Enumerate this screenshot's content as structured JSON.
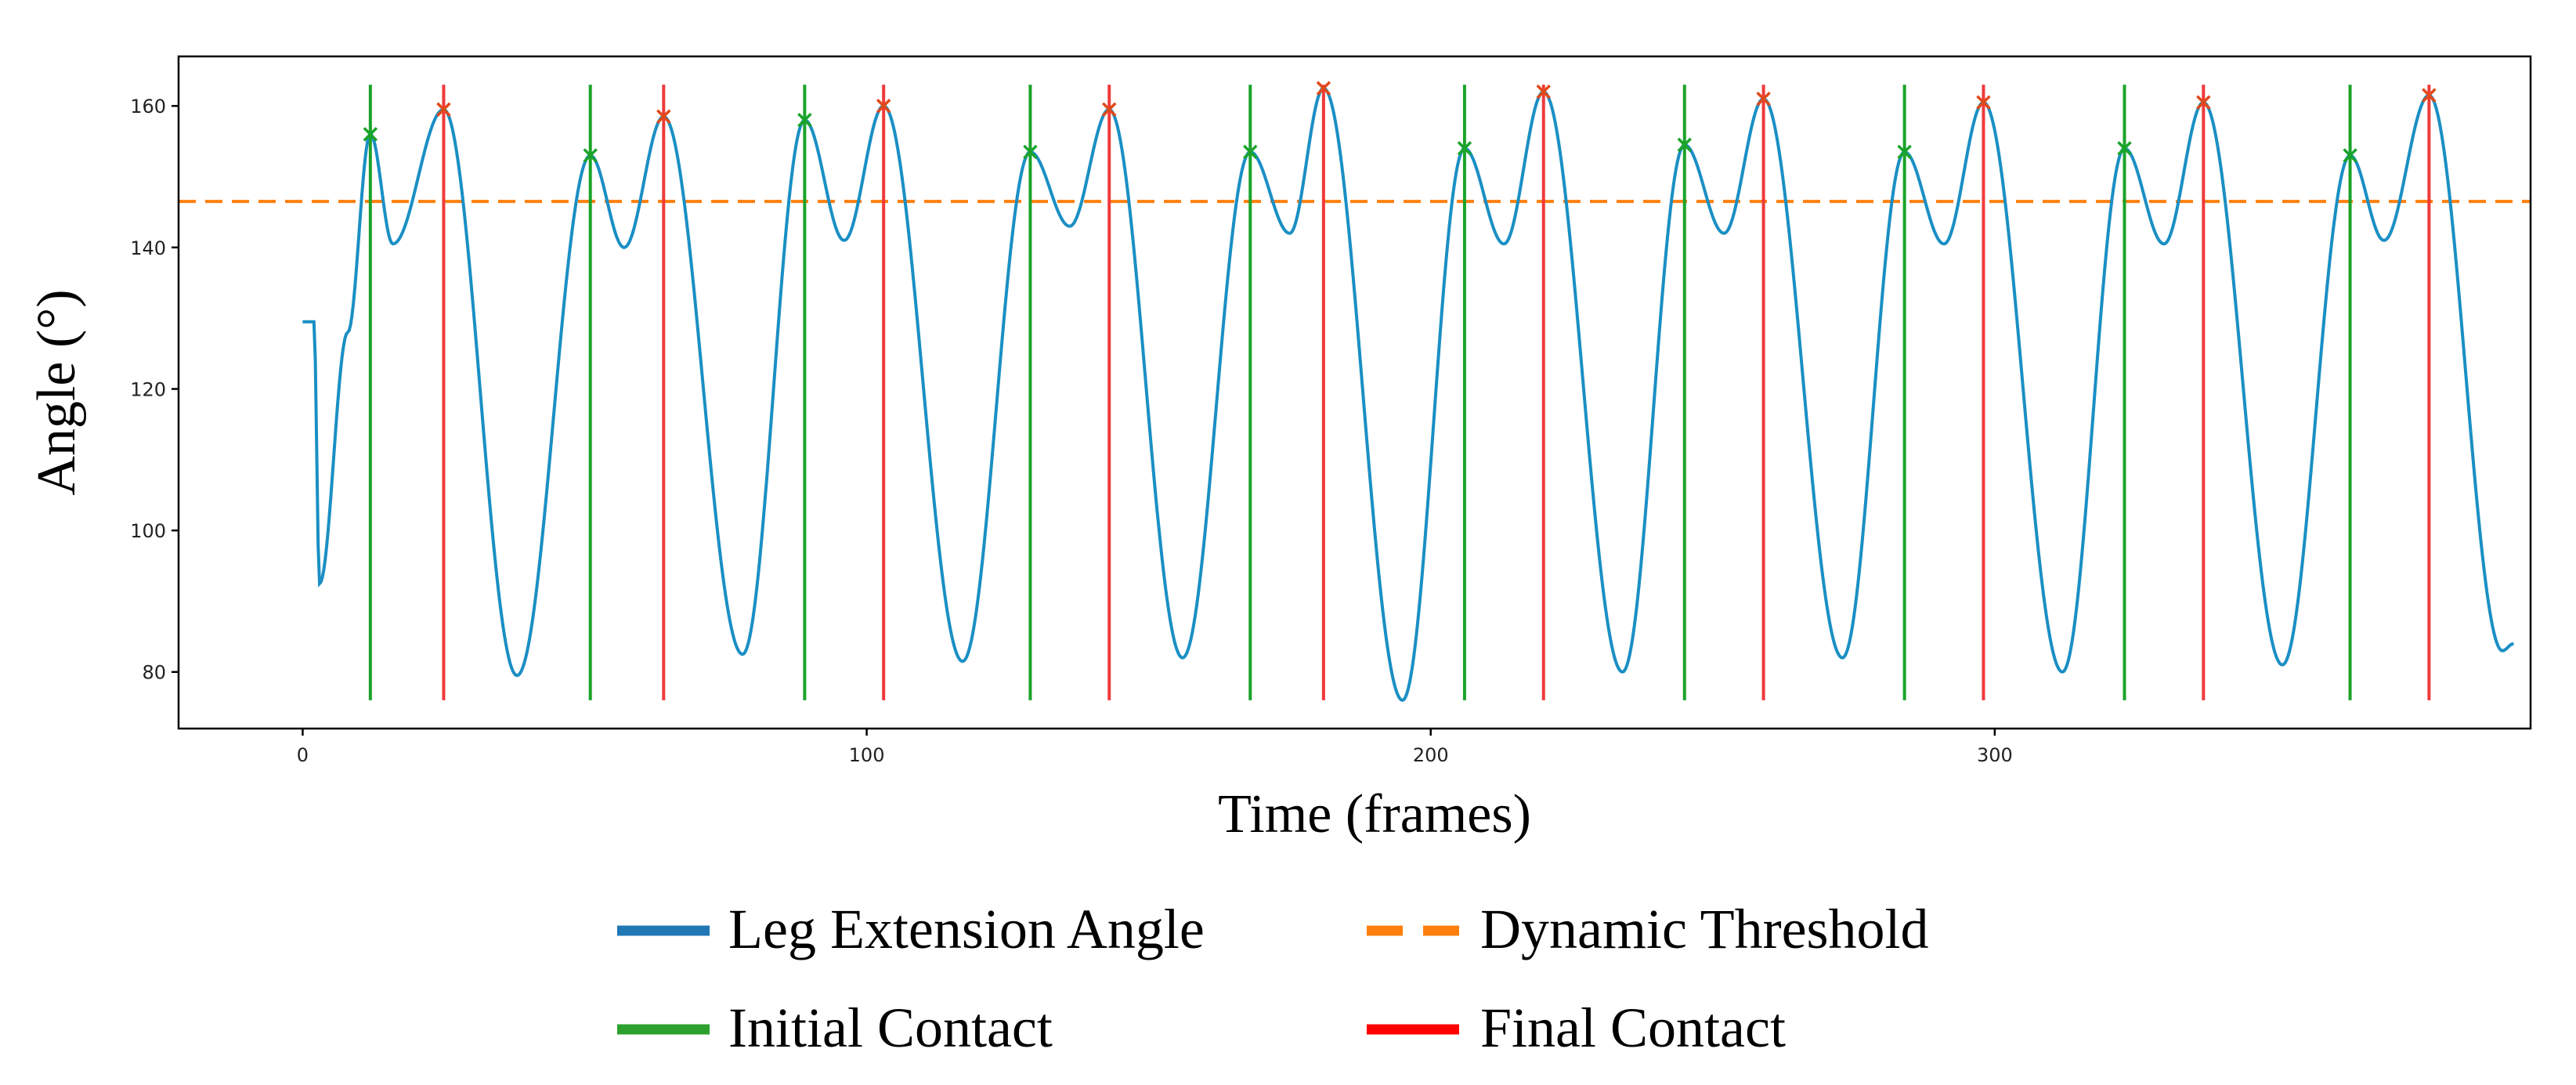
{
  "chart_data": {
    "type": "line",
    "xlabel": "Time (frames)",
    "ylabel": "Angle (°)",
    "xlim": [
      -22,
      395
    ],
    "ylim": [
      72,
      167
    ],
    "x_ticks": [
      0,
      100,
      200,
      300
    ],
    "y_ticks": [
      80,
      100,
      120,
      140,
      160
    ],
    "legend": [
      {
        "key": "angle",
        "label": "Leg Extension Angle",
        "color": "#1f77b4",
        "style": "solid"
      },
      {
        "key": "threshold",
        "label": "Dynamic Threshold",
        "color": "#ff7f0e",
        "style": "dashed"
      },
      {
        "key": "initial",
        "label": "Initial Contact",
        "color": "#2ca02c",
        "style": "solid"
      },
      {
        "key": "final",
        "label": "Final Contact",
        "color": "#ff0000",
        "style": "solid"
      }
    ],
    "series": [
      {
        "name": "Leg Extension Angle",
        "color": "#1a8fc4",
        "keypoints": [
          [
            0,
            129.5
          ],
          [
            2,
            129.5
          ],
          [
            3,
            92.5
          ],
          [
            8,
            128
          ],
          [
            12,
            156
          ],
          [
            16,
            140.5
          ],
          [
            25,
            159.5
          ],
          [
            38,
            79.5
          ],
          [
            51,
            153
          ],
          [
            57,
            140
          ],
          [
            64,
            158.5
          ],
          [
            78,
            82.5
          ],
          [
            89,
            158
          ],
          [
            96,
            141
          ],
          [
            103,
            160
          ],
          [
            117,
            81.5
          ],
          [
            129,
            153.5
          ],
          [
            136,
            143
          ],
          [
            143,
            159.5
          ],
          [
            156,
            82
          ],
          [
            168,
            153.5
          ],
          [
            175,
            142
          ],
          [
            181,
            162.5
          ],
          [
            195,
            76
          ],
          [
            206,
            154
          ],
          [
            213,
            140.5
          ],
          [
            220,
            162
          ],
          [
            234,
            80
          ],
          [
            245,
            154.5
          ],
          [
            252,
            142
          ],
          [
            259,
            161
          ],
          [
            273,
            82
          ],
          [
            284,
            153.5
          ],
          [
            291,
            140.5
          ],
          [
            298,
            160.5
          ],
          [
            312,
            80
          ],
          [
            323,
            154
          ],
          [
            330,
            140.5
          ],
          [
            337,
            160.5
          ],
          [
            351,
            81
          ],
          [
            363,
            153
          ],
          [
            369,
            141
          ],
          [
            377,
            161.5
          ],
          [
            390,
            83
          ],
          [
            392,
            84
          ]
        ]
      }
    ],
    "threshold_value": 146.5,
    "initial_contacts": [
      {
        "frame": 12,
        "angle": 156
      },
      {
        "frame": 51,
        "angle": 153
      },
      {
        "frame": 89,
        "angle": 158
      },
      {
        "frame": 129,
        "angle": 153.5
      },
      {
        "frame": 168,
        "angle": 153.5
      },
      {
        "frame": 206,
        "angle": 154
      },
      {
        "frame": 245,
        "angle": 154.5
      },
      {
        "frame": 284,
        "angle": 153.5
      },
      {
        "frame": 323,
        "angle": 154
      },
      {
        "frame": 363,
        "angle": 153
      }
    ],
    "final_contacts": [
      {
        "frame": 25,
        "angle": 159.5
      },
      {
        "frame": 64,
        "angle": 158.5
      },
      {
        "frame": 103,
        "angle": 160
      },
      {
        "frame": 143,
        "angle": 159.5
      },
      {
        "frame": 181,
        "angle": 162.5
      },
      {
        "frame": 220,
        "angle": 162
      },
      {
        "frame": 259,
        "angle": 161
      },
      {
        "frame": 298,
        "angle": 160.5
      },
      {
        "frame": 337,
        "angle": 160.5
      },
      {
        "frame": 377,
        "angle": 161.5
      }
    ],
    "contact_line_range": [
      76,
      163
    ]
  }
}
